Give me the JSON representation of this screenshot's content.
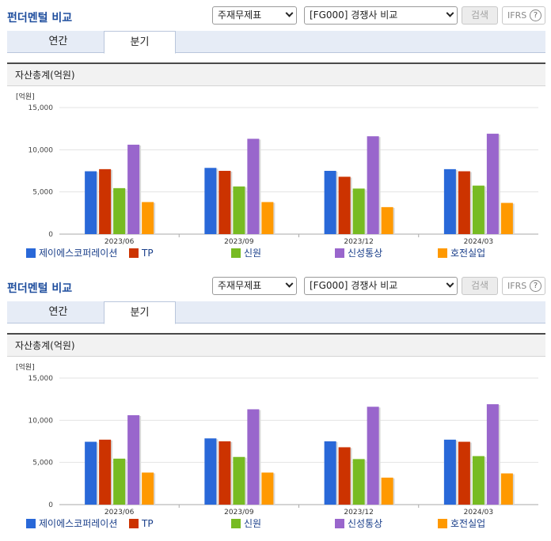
{
  "colors": {
    "series": [
      "#2968d8",
      "#cc3300",
      "#77bb22",
      "#9966cc",
      "#ff9900"
    ],
    "title": "#1f4e9e",
    "legend_text": "#1a3f8a"
  },
  "panels": [
    {
      "title": "펀더멘털 비교",
      "select_type": "주재무제표",
      "select_group": "[FG000] 경쟁사 비교",
      "search_label": "검색",
      "ifrs_label": "IFRS",
      "ifrs_help": "?",
      "tabs": [
        {
          "label": "연간"
        },
        {
          "label": "분기"
        }
      ],
      "active_tab": "분기",
      "section_title": "자산총계(억원)",
      "unit": "[억원]"
    },
    {
      "title": "펀더멘털 비교",
      "select_type": "주재무제표",
      "select_group": "[FG000] 경쟁사 비교",
      "search_label": "검색",
      "ifrs_label": "IFRS",
      "ifrs_help": "?",
      "tabs": [
        {
          "label": "연간"
        },
        {
          "label": "분기"
        }
      ],
      "active_tab": "분기",
      "section_title": "자산총계(억원)",
      "unit": "[억원]"
    }
  ],
  "chart_data": [
    {
      "type": "bar",
      "categories": [
        "2023/06",
        "2023/09",
        "2023/12",
        "2024/03"
      ],
      "ylim": [
        0,
        15000
      ],
      "yticks": [
        "0",
        "5,000",
        "10,000",
        "15,000"
      ],
      "ytick_values": [
        0,
        5000,
        10000,
        15000
      ],
      "grid": true,
      "legend_position": "bottom",
      "series": [
        {
          "name": "제이에스코퍼레이션",
          "values": [
            7450,
            7850,
            7500,
            7700
          ]
        },
        {
          "name": "TP",
          "values": [
            7700,
            7500,
            6800,
            7450
          ]
        },
        {
          "name": "신원",
          "values": [
            5450,
            5650,
            5400,
            5750
          ]
        },
        {
          "name": "신성통상",
          "values": [
            10600,
            11300,
            11600,
            11900
          ]
        },
        {
          "name": "호전실업",
          "values": [
            3800,
            3800,
            3200,
            3700
          ]
        }
      ]
    },
    {
      "type": "bar",
      "categories": [
        "2023/06",
        "2023/09",
        "2023/12",
        "2024/03"
      ],
      "ylim": [
        0,
        15000
      ],
      "yticks": [
        "0",
        "5,000",
        "10,000",
        "15,000"
      ],
      "ytick_values": [
        0,
        5000,
        10000,
        15000
      ],
      "grid": true,
      "legend_position": "bottom",
      "series": [
        {
          "name": "제이에스코퍼레이션",
          "values": [
            7450,
            7850,
            7500,
            7700
          ]
        },
        {
          "name": "TP",
          "values": [
            7700,
            7500,
            6800,
            7450
          ]
        },
        {
          "name": "신원",
          "values": [
            5450,
            5650,
            5400,
            5750
          ]
        },
        {
          "name": "신성통상",
          "values": [
            10600,
            11300,
            11600,
            11900
          ]
        },
        {
          "name": "호전실업",
          "values": [
            3800,
            3800,
            3200,
            3700
          ]
        }
      ]
    }
  ]
}
